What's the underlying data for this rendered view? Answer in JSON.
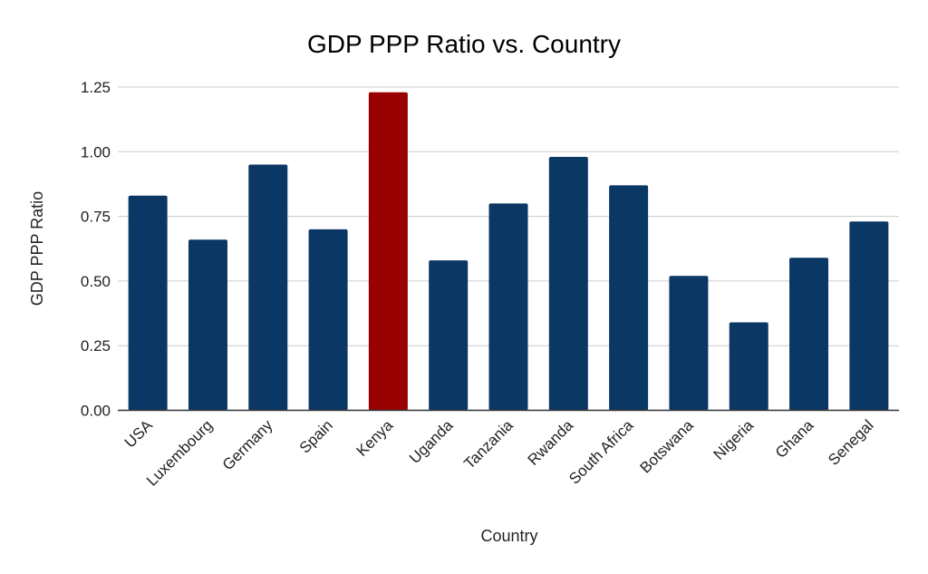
{
  "chart_data": {
    "type": "bar",
    "title": "GDP PPP Ratio vs. Country",
    "xlabel": "Country",
    "ylabel": "GDP PPP Ratio",
    "ylim": [
      0,
      1.25
    ],
    "yticks": [
      "0.00",
      "0.25",
      "0.50",
      "0.75",
      "1.00",
      "1.25"
    ],
    "grid": true,
    "categories": [
      "USA",
      "Luxembourg",
      "Germany",
      "Spain",
      "Kenya",
      "Uganda",
      "Tanzania",
      "Rwanda",
      "South Africa",
      "Botswana",
      "Nigeria",
      "Ghana",
      "Senegal"
    ],
    "values": [
      0.83,
      0.66,
      0.95,
      0.7,
      1.23,
      0.58,
      0.8,
      0.98,
      0.87,
      0.52,
      0.34,
      0.59,
      0.73
    ],
    "colors": {
      "default": "#0b3764",
      "highlight": "#990000"
    },
    "highlight": "Kenya"
  }
}
